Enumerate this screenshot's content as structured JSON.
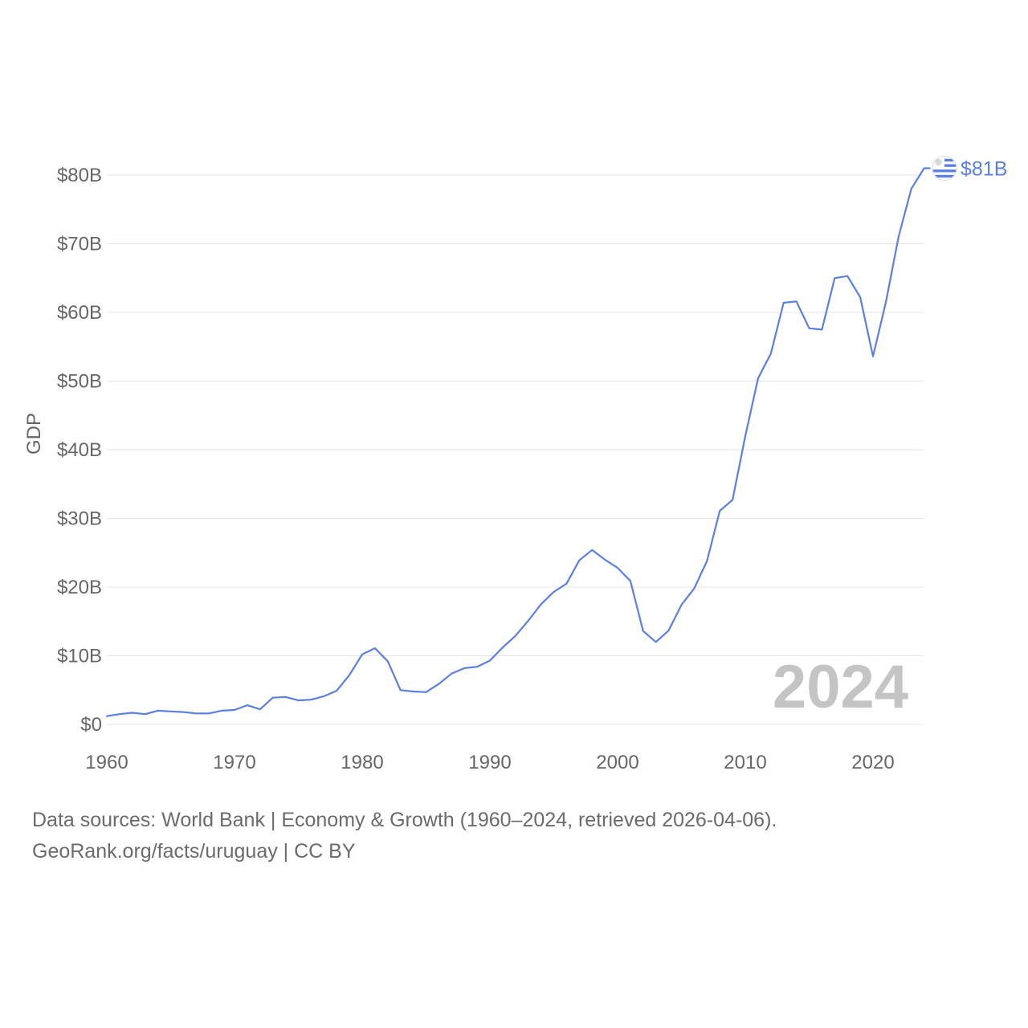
{
  "chart_data": {
    "type": "line",
    "title": "",
    "xlabel": "",
    "ylabel": "GDP",
    "xlim": [
      1960,
      2024
    ],
    "ylim": [
      0,
      80
    ],
    "grid": true,
    "x_ticks": [
      "1960",
      "1970",
      "1980",
      "1990",
      "2000",
      "2010",
      "2020"
    ],
    "y_ticks": [
      {
        "value": 0,
        "label": "$0"
      },
      {
        "value": 10,
        "label": "$10B"
      },
      {
        "value": 20,
        "label": "$20B"
      },
      {
        "value": 30,
        "label": "$30B"
      },
      {
        "value": 40,
        "label": "$40B"
      },
      {
        "value": 50,
        "label": "$50B"
      },
      {
        "value": 60,
        "label": "$60B"
      },
      {
        "value": 70,
        "label": "$70B"
      },
      {
        "value": 80,
        "label": "$80B"
      }
    ],
    "series": [
      {
        "name": "Uruguay",
        "color": "#5b7fe3",
        "unit": "billions USD",
        "end_label": "$81B",
        "marker_icon": "uruguay-flag-icon",
        "x": [
          1960,
          1961,
          1962,
          1963,
          1964,
          1965,
          1966,
          1967,
          1968,
          1969,
          1970,
          1971,
          1972,
          1973,
          1974,
          1975,
          1976,
          1977,
          1978,
          1979,
          1980,
          1981,
          1982,
          1983,
          1984,
          1985,
          1986,
          1987,
          1988,
          1989,
          1990,
          1991,
          1992,
          1993,
          1994,
          1995,
          1996,
          1997,
          1998,
          1999,
          2000,
          2001,
          2002,
          2003,
          2004,
          2005,
          2006,
          2007,
          2008,
          2009,
          2010,
          2011,
          2012,
          2013,
          2014,
          2015,
          2016,
          2017,
          2018,
          2019,
          2020,
          2021,
          2022,
          2023,
          2024
        ],
        "values": [
          1.2,
          1.5,
          1.7,
          1.5,
          2.0,
          1.9,
          1.8,
          1.6,
          1.6,
          2.0,
          2.1,
          2.8,
          2.2,
          3.9,
          4.0,
          3.5,
          3.6,
          4.1,
          4.9,
          7.2,
          10.2,
          11.1,
          9.2,
          5.0,
          4.8,
          4.7,
          5.9,
          7.4,
          8.2,
          8.4,
          9.3,
          11.2,
          12.9,
          15.1,
          17.5,
          19.3,
          20.5,
          23.9,
          25.4,
          24.0,
          22.8,
          20.9,
          13.6,
          12.0,
          13.7,
          17.4,
          19.8,
          23.8,
          31.1,
          32.7,
          42.0,
          50.4,
          54.0,
          61.4,
          61.6,
          57.7,
          57.5,
          65.0,
          65.3,
          62.2,
          53.6,
          61.4,
          71.0,
          78.0,
          81.0
        ]
      }
    ],
    "watermark_year": "2024",
    "legend": "none"
  },
  "footer": {
    "line1": "Data sources: World Bank | Economy & Growth (1960–2024, retrieved 2026-04-06).",
    "line2": "GeoRank.org/facts/uruguay | CC BY"
  }
}
